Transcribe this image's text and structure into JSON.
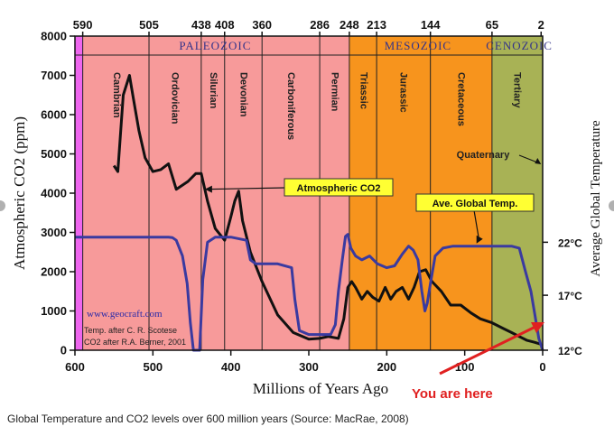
{
  "caption": "Global Temperature and CO2 levels over 600 million years (Source: MacRae, 2008)",
  "colors": {
    "paleozoic": "#f79a9a",
    "mesozoic": "#f7941d",
    "cenozoic": "#a8b255",
    "precambrian_strip": "#ee66ee",
    "co2_line": "#111111",
    "temp_line": "#3a3aa0",
    "annotation_box": "#ffff33",
    "era_label": "#33338a",
    "you_are_here": "#e02020"
  },
  "chart_data": {
    "type": "line",
    "xlabel": "Millions of Years Ago",
    "ylabel": "Atmospheric CO2 (ppm)",
    "y2label": "Average Global Temperature",
    "xlim": [
      600,
      0
    ],
    "ylim": [
      0,
      8000
    ],
    "x_ticks": [
      "600",
      "500",
      "400",
      "300",
      "200",
      "100",
      "0"
    ],
    "y_ticks": [
      "0",
      "1000",
      "2000",
      "3000",
      "4000",
      "5000",
      "6000",
      "7000",
      "8000"
    ],
    "y2_ticks": [
      {
        "label": "22°C",
        "co2_equiv": 2750
      },
      {
        "label": "17°C",
        "co2_equiv": 1400
      },
      {
        "label": "12°C",
        "co2_equiv": 0
      }
    ],
    "top_ticks": [
      {
        "label": "590",
        "x": 590
      },
      {
        "label": "505",
        "x": 505
      },
      {
        "label": "438",
        "x": 438
      },
      {
        "label": "408",
        "x": 408
      },
      {
        "label": "360",
        "x": 360
      },
      {
        "label": "286",
        "x": 286
      },
      {
        "label": "248",
        "x": 248
      },
      {
        "label": "213",
        "x": 213
      },
      {
        "label": "144",
        "x": 144
      },
      {
        "label": "65",
        "x": 65
      },
      {
        "label": "2",
        "x": 2
      }
    ],
    "eras": [
      {
        "name": "PALEOZOIC",
        "from": 590,
        "to": 248,
        "label_at": 420
      },
      {
        "name": "MESOZOIC",
        "from": 248,
        "to": 65,
        "label_at": 160
      },
      {
        "name": "CENOZOIC",
        "from": 65,
        "to": 0,
        "label_at": 30
      }
    ],
    "periods": [
      {
        "name": "Cambrian",
        "at": 547
      },
      {
        "name": "Ordovician",
        "at": 472
      },
      {
        "name": "Silurian",
        "at": 423
      },
      {
        "name": "Devonian",
        "at": 384
      },
      {
        "name": "Carboniferous",
        "at": 323
      },
      {
        "name": "Permian",
        "at": 267
      },
      {
        "name": "Triassic",
        "at": 230
      },
      {
        "name": "Jurassic",
        "at": 179
      },
      {
        "name": "Cretaceous",
        "at": 105
      },
      {
        "name": "Tertiary",
        "at": 33
      }
    ],
    "series": [
      {
        "name": "Atmospheric CO2",
        "x": [
          550,
          545,
          538,
          530,
          525,
          518,
          510,
          500,
          490,
          480,
          470,
          455,
          445,
          438,
          430,
          420,
          408,
          400,
          395,
          390,
          385,
          375,
          360,
          340,
          320,
          300,
          286,
          275,
          262,
          255,
          250,
          245,
          240,
          232,
          225,
          218,
          210,
          202,
          195,
          188,
          180,
          172,
          165,
          158,
          150,
          142,
          130,
          118,
          105,
          92,
          80,
          65,
          50,
          40,
          30,
          20,
          10,
          2
        ],
        "values": [
          4700,
          4550,
          6500,
          7000,
          6400,
          5600,
          4900,
          4550,
          4600,
          4750,
          4100,
          4300,
          4500,
          4500,
          3800,
          3100,
          2800,
          3400,
          3800,
          4050,
          3300,
          2500,
          1750,
          900,
          450,
          280,
          300,
          350,
          300,
          800,
          1600,
          1750,
          1600,
          1300,
          1500,
          1350,
          1250,
          1600,
          1300,
          1500,
          1600,
          1300,
          1600,
          2000,
          2050,
          1750,
          1500,
          1150,
          1150,
          950,
          800,
          700,
          550,
          450,
          350,
          250,
          200,
          150
        ]
      },
      {
        "name": "Ave. Global Temp.",
        "x": [
          600,
          580,
          560,
          540,
          520,
          500,
          480,
          475,
          470,
          462,
          456,
          452,
          448,
          444,
          440,
          436,
          430,
          420,
          400,
          380,
          375,
          368,
          360,
          340,
          322,
          318,
          312,
          300,
          285,
          272,
          266,
          262,
          257,
          253,
          250,
          246,
          240,
          232,
          222,
          212,
          200,
          190,
          180,
          172,
          166,
          160,
          155,
          151,
          148,
          144,
          138,
          128,
          115,
          100,
          80,
          60,
          40,
          30,
          22,
          15,
          10,
          5,
          0
        ],
        "values": [
          2880,
          2880,
          2880,
          2880,
          2880,
          2880,
          2880,
          2870,
          2800,
          2400,
          1700,
          700,
          0,
          0,
          0,
          1800,
          2750,
          2880,
          2880,
          2800,
          2300,
          2200,
          2200,
          2200,
          2100,
          1300,
          500,
          400,
          400,
          400,
          650,
          1500,
          2300,
          2900,
          2950,
          2600,
          2400,
          2300,
          2400,
          2200,
          2100,
          2150,
          2450,
          2650,
          2550,
          2300,
          1500,
          1000,
          1200,
          1700,
          2400,
          2600,
          2650,
          2650,
          2650,
          2650,
          2650,
          2600,
          2000,
          1500,
          900,
          300,
          0
        ]
      }
    ],
    "annotations": [
      {
        "name": "Atmospheric CO2",
        "points_to": [
          438,
          4100
        ]
      },
      {
        "name": "Ave. Global Temp.",
        "points_to": [
          93,
          2650
        ]
      },
      {
        "name": "Quaternary",
        "points_to": [
          2,
          4800
        ]
      }
    ],
    "credits": [
      {
        "text": "www.geocraft.com"
      },
      {
        "text": "Temp. after C. R. Scotese"
      },
      {
        "text": "CO2 after R.A. Berner, 2001"
      }
    ],
    "callout": "You are here",
    "grid": false,
    "legend": "none"
  }
}
